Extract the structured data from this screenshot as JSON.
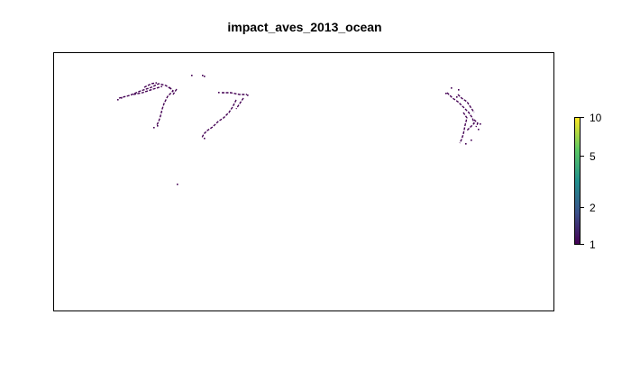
{
  "title": "impact_aves_2013_ocean",
  "legend": {
    "labels": [
      "10",
      "5",
      "2",
      "1"
    ],
    "values": [
      10,
      5,
      2,
      1
    ],
    "scale": "log",
    "range": [
      1,
      10
    ],
    "colors": [
      "#440154",
      "#3b528b",
      "#21908d",
      "#5dc963",
      "#fde725"
    ]
  },
  "map": {
    "pixel_color": "#440154",
    "axes_visible": false
  }
}
